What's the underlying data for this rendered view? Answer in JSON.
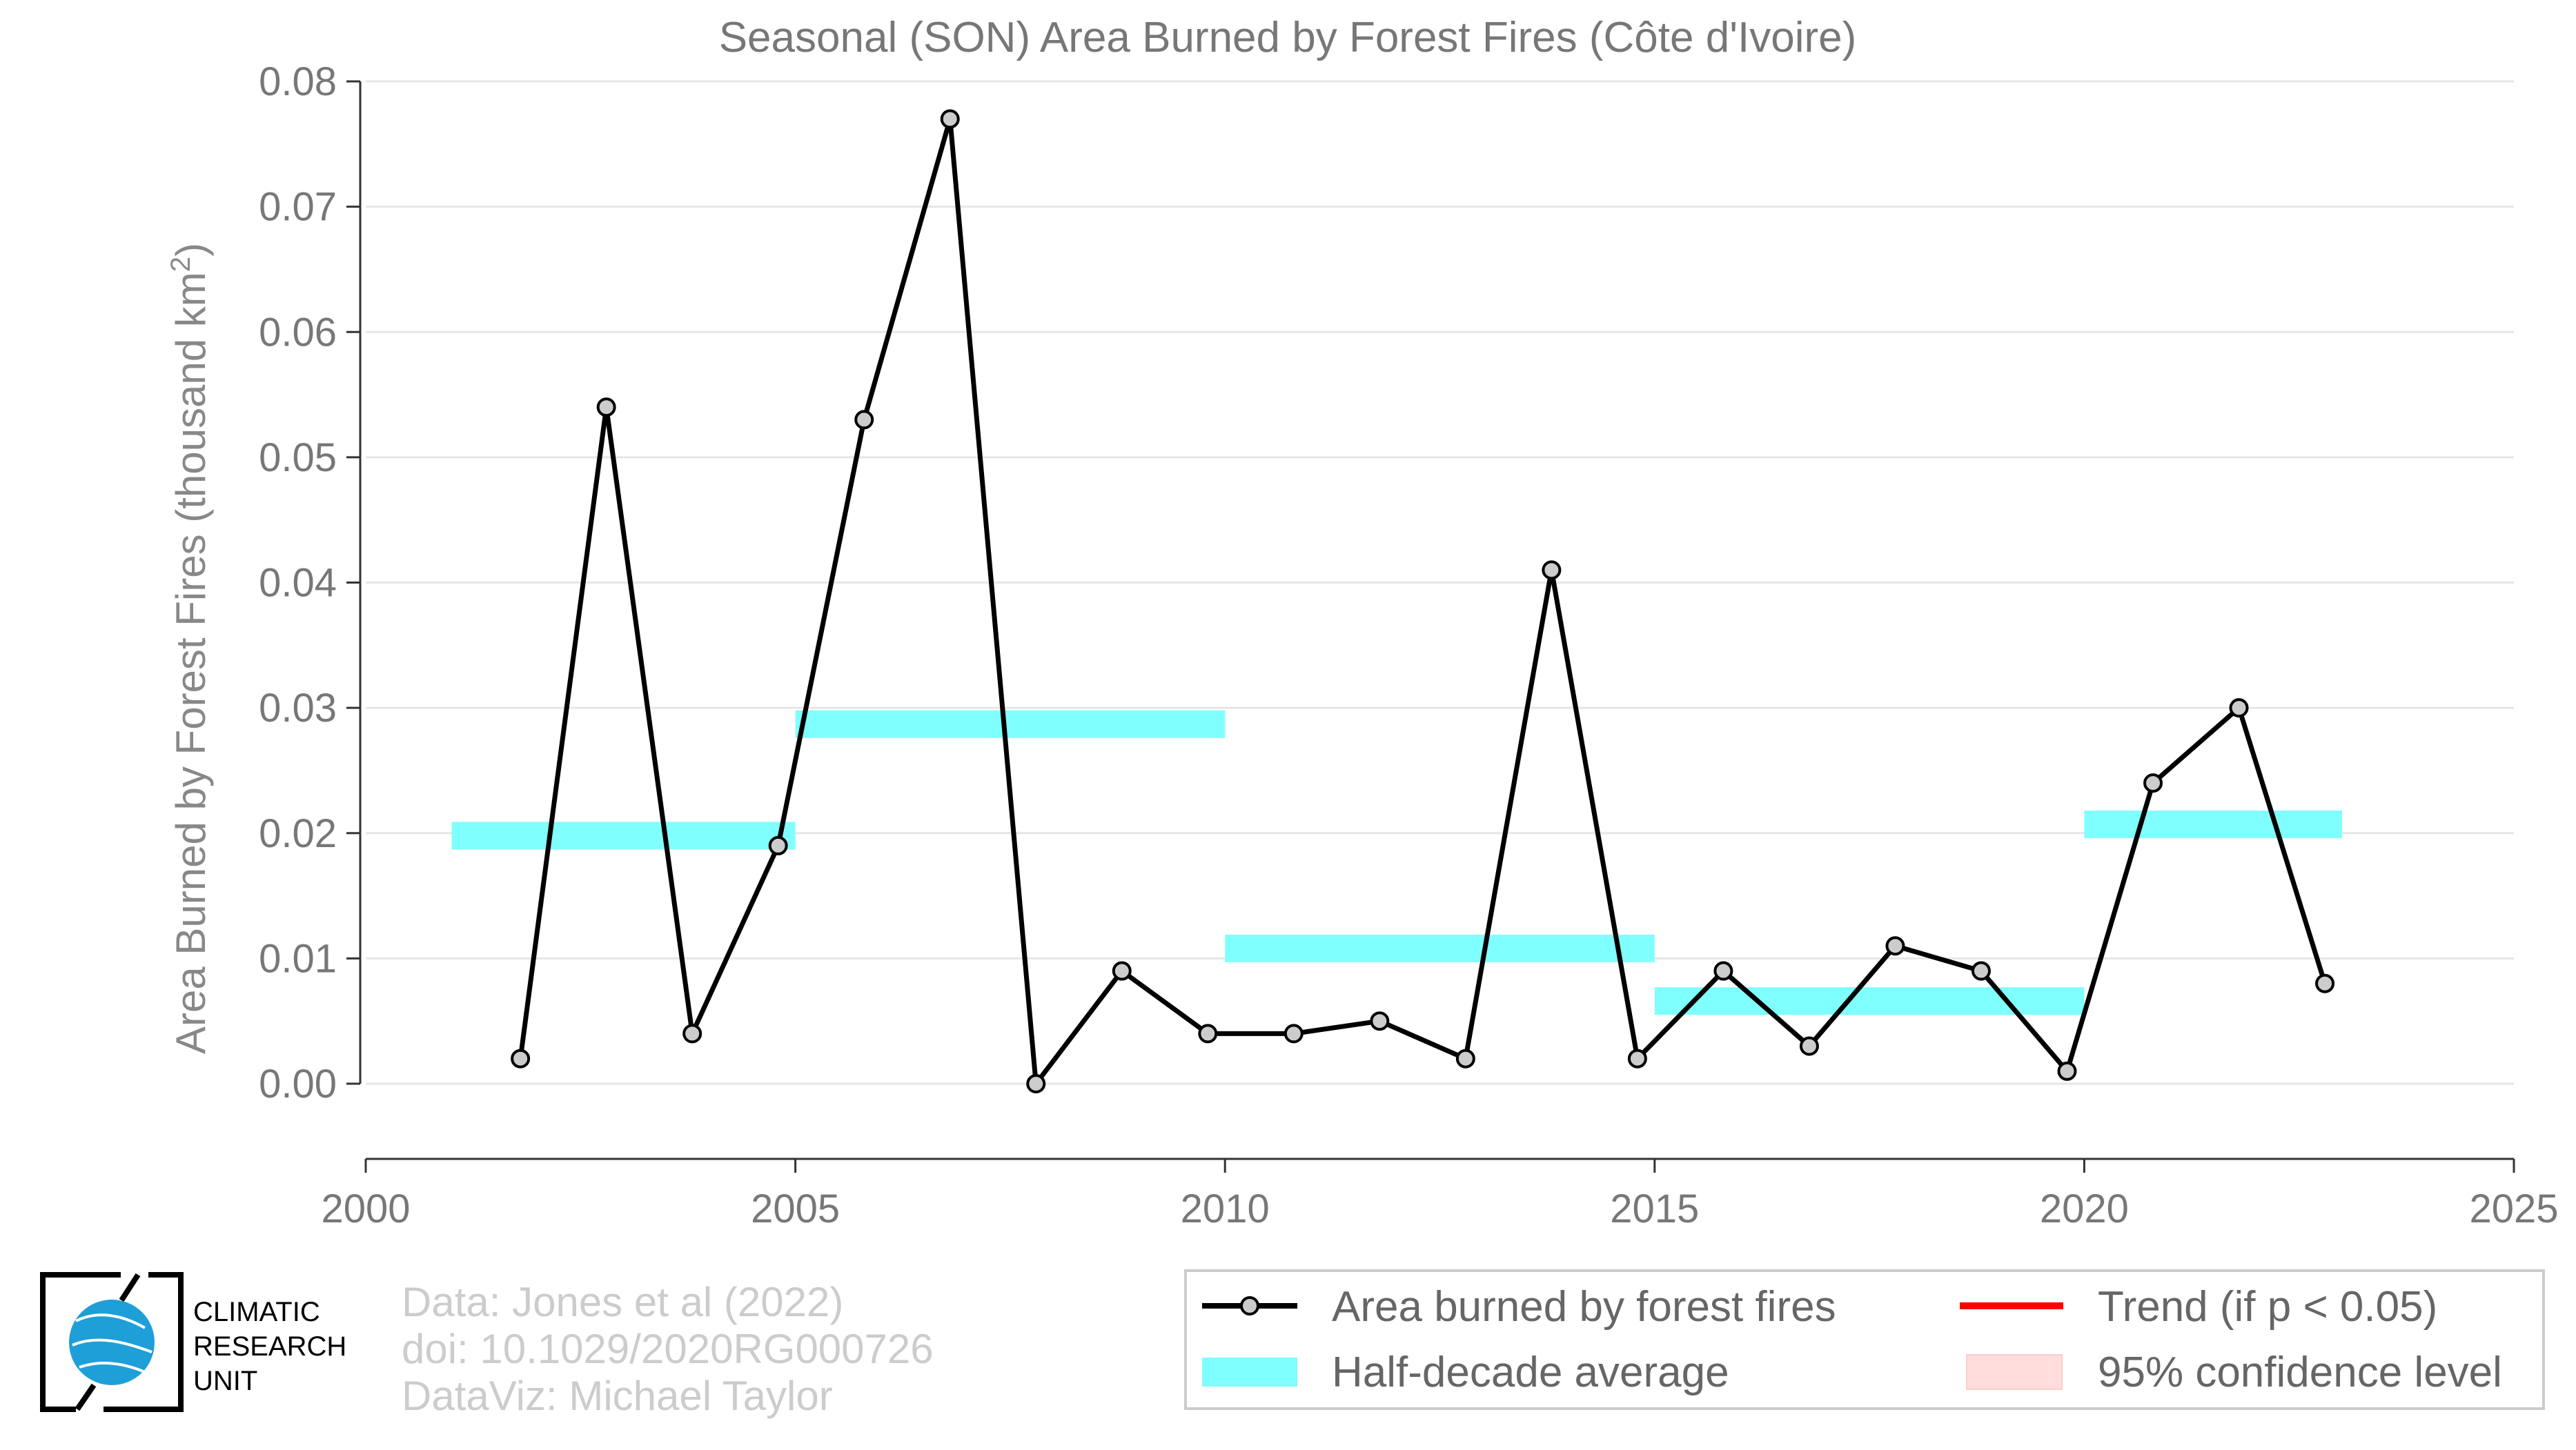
{
  "chart_data": {
    "type": "line",
    "title": "Seasonal (SON) Area Burned by Forest Fires (Côte d'Ivoire)",
    "ylabel": "Area Burned by Forest Fires (thousand km",
    "ylabel_sup": "2",
    "ylabel_close": ")",
    "xlim": [
      2000,
      2025
    ],
    "ylim": [
      -0.006,
      0.08
    ],
    "xticks": [
      "2000",
      "2005",
      "2010",
      "2015",
      "2020",
      "2025"
    ],
    "yticks": [
      "0.00",
      "0.01",
      "0.02",
      "0.03",
      "0.04",
      "0.05",
      "0.06",
      "0.07",
      "0.08"
    ],
    "grid": true,
    "series": [
      {
        "name": "Area burned by forest fires",
        "color": "#000000",
        "marker_fill": "#cccccc",
        "x": [
          2001.8,
          2002.8,
          2003.8,
          2004.8,
          2005.8,
          2006.8,
          2007.8,
          2008.8,
          2009.8,
          2010.8,
          2011.8,
          2012.8,
          2013.8,
          2014.8,
          2015.8,
          2016.8,
          2017.8,
          2018.8,
          2019.8,
          2020.8,
          2021.8,
          2022.8
        ],
        "y": [
          0.002,
          0.054,
          0.004,
          0.019,
          0.053,
          0.077,
          0.0,
          0.009,
          0.004,
          0.004,
          0.005,
          0.002,
          0.041,
          0.002,
          0.009,
          0.003,
          0.011,
          0.009,
          0.001,
          0.024,
          0.03,
          0.008
        ]
      }
    ],
    "half_decade_average": {
      "name": "Half-decade average",
      "color": "#80ffff",
      "segments": [
        {
          "x0": 2001,
          "x1": 2005,
          "y": 0.0198
        },
        {
          "x0": 2005,
          "x1": 2010,
          "y": 0.0287
        },
        {
          "x0": 2010,
          "x1": 2015,
          "y": 0.0108
        },
        {
          "x0": 2015,
          "x1": 2020,
          "y": 0.0066
        },
        {
          "x0": 2020,
          "x1": 2023,
          "y": 0.0207
        }
      ]
    },
    "legend": {
      "placement": "bottom-right",
      "items": [
        {
          "label": "Area burned by forest fires",
          "kind": "line-marker",
          "color": "#000000"
        },
        {
          "label": "Trend (if p < 0.05)",
          "kind": "line",
          "color": "#ff0000"
        },
        {
          "label": "Half-decade average",
          "kind": "band",
          "color": "#80ffff"
        },
        {
          "label": "95% confidence level",
          "kind": "band",
          "color": "#ffdddd"
        }
      ]
    }
  },
  "credits": {
    "line1": "Data: Jones et al (2022)",
    "line2": "doi: 10.1029/2020RG000726",
    "line3": "DataViz: Michael Taylor"
  },
  "logo": {
    "line1": "CLIMATIC",
    "line2": "RESEARCH",
    "line3": "UNIT",
    "globe_color": "#1e9fd8"
  }
}
